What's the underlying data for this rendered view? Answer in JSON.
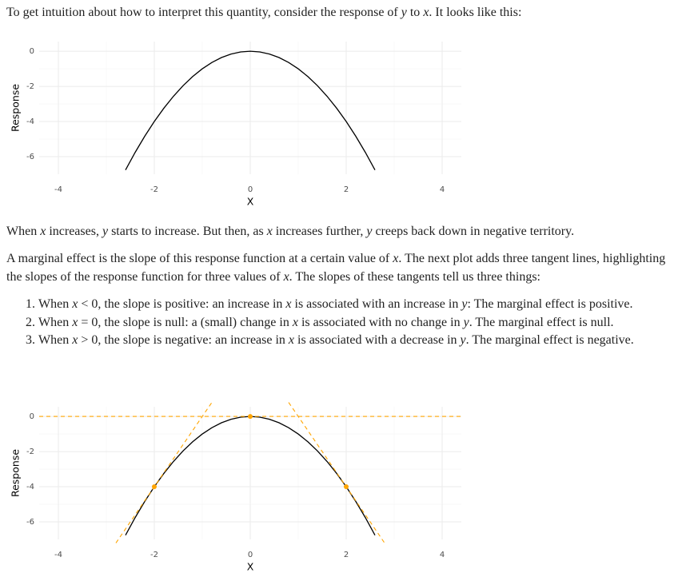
{
  "paragraphs": [
    [
      "To get intuition about how to interpret this quantity, consider the response of ",
      "y",
      " to ",
      "x",
      ". It looks like this:"
    ],
    [
      "When ",
      "x",
      " increases, ",
      "y",
      " starts to increase. But then, as ",
      "x",
      " increases further, ",
      "y",
      " creeps back down in negative territory."
    ],
    [
      "A marginal effect is the slope of this response function at a certain value of ",
      "x",
      ". The next plot adds three tangent lines, highlighting the slopes of the response function for three values of ",
      "x",
      ". The slopes of these tangents tell us three things:"
    ]
  ],
  "list": [
    [
      "When ",
      "x",
      " < 0, the slope is positive: an increase in ",
      "x",
      " is associated with an increase in ",
      "y",
      ": The marginal effect is positive."
    ],
    [
      "When ",
      "x",
      " = 0, the slope is null: a (small) change in ",
      "x",
      " is associated with no change in ",
      "y",
      ". The marginal effect is null."
    ],
    [
      "When ",
      "x",
      " > 0, the slope is negative: an increase in ",
      "x",
      " is associated with a decrease in ",
      "y",
      ". The marginal effect is negative."
    ]
  ],
  "chart_data": [
    {
      "type": "line",
      "x_label": "X",
      "y_label": "Response",
      "x": [
        -2.6,
        -2.4,
        -2.2,
        -2,
        -1.8,
        -1.6,
        -1.4,
        -1.2,
        -1,
        -0.8,
        -0.6,
        -0.4,
        -0.2,
        0,
        0.2,
        0.4,
        0.6,
        0.8,
        1,
        1.2,
        1.4,
        1.6,
        1.8,
        2,
        2.2,
        2.4,
        2.6
      ],
      "values": [
        -6.76,
        -5.76,
        -4.84,
        -4,
        -3.24,
        -2.56,
        -1.96,
        -1.44,
        -1,
        -0.64,
        -0.36,
        -0.16,
        -0.04,
        0,
        -0.04,
        -0.16,
        -0.36,
        -0.64,
        -1,
        -1.44,
        -1.96,
        -2.56,
        -3.24,
        -4,
        -4.84,
        -5.76,
        -6.76
      ],
      "color": "#000000",
      "xlim": [
        -4.4,
        4.4
      ],
      "ylim": [
        -7,
        0.55
      ],
      "xticks": [
        -4,
        -2,
        0,
        2,
        4
      ],
      "yticks": [
        0,
        -2,
        -4,
        -6
      ],
      "xminor": [
        -3,
        -1,
        1,
        3
      ],
      "yminor": [
        -1,
        -3,
        -5
      ],
      "grid": true
    },
    {
      "type": "line",
      "x_label": "X",
      "y_label": "Response",
      "x": [
        -2.6,
        -2.4,
        -2.2,
        -2,
        -1.8,
        -1.6,
        -1.4,
        -1.2,
        -1,
        -0.8,
        -0.6,
        -0.4,
        -0.2,
        0,
        0.2,
        0.4,
        0.6,
        0.8,
        1,
        1.2,
        1.4,
        1.6,
        1.8,
        2,
        2.2,
        2.4,
        2.6
      ],
      "values": [
        -6.76,
        -5.76,
        -4.84,
        -4,
        -3.24,
        -2.56,
        -1.96,
        -1.44,
        -1,
        -0.64,
        -0.36,
        -0.16,
        -0.04,
        0,
        -0.04,
        -0.16,
        -0.36,
        -0.64,
        -1,
        -1.44,
        -1.96,
        -2.56,
        -3.24,
        -4,
        -4.84,
        -5.76,
        -6.76
      ],
      "color": "#000000",
      "tangents": [
        {
          "x": [
            -2.8,
            -0.8
          ],
          "values": [
            -7.2,
            0.8
          ]
        },
        {
          "x": [
            -4.4,
            4.4
          ],
          "values": [
            0,
            0
          ]
        },
        {
          "x": [
            0.8,
            2.8
          ],
          "values": [
            0.8,
            -7.2
          ]
        }
      ],
      "tangent_color": "#FFA500",
      "points": {
        "x": [
          -2,
          0,
          2
        ],
        "values": [
          -4,
          0,
          -4
        ]
      },
      "xlim": [
        -4.4,
        4.4
      ],
      "ylim": [
        -7,
        0.55
      ],
      "xticks": [
        -4,
        -2,
        0,
        2,
        4
      ],
      "yticks": [
        0,
        -2,
        -4,
        -6
      ],
      "xminor": [
        -3,
        -1,
        1,
        3
      ],
      "yminor": [
        -1,
        -3,
        -5
      ],
      "grid": true
    }
  ]
}
